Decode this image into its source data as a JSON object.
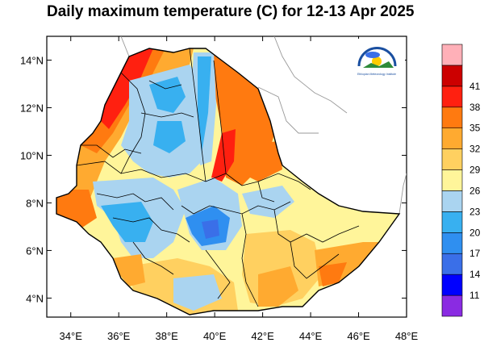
{
  "title": "Daily maximum temperature (C) for 12-13 Apr 2025",
  "x_axis": {
    "range": [
      33,
      48
    ],
    "ticks": [
      {
        "value": 34,
        "label": "34°E"
      },
      {
        "value": 36,
        "label": "36°E"
      },
      {
        "value": 38,
        "label": "38°E"
      },
      {
        "value": 40,
        "label": "40°E"
      },
      {
        "value": 42,
        "label": "42°E"
      },
      {
        "value": 44,
        "label": "44°E"
      },
      {
        "value": 46,
        "label": "46°E"
      },
      {
        "value": 48,
        "label": "48°E"
      }
    ]
  },
  "y_axis": {
    "range": [
      3.2,
      15
    ],
    "ticks": [
      {
        "value": 4,
        "label": "4°N"
      },
      {
        "value": 6,
        "label": "6°N"
      },
      {
        "value": 8,
        "label": "8°N"
      },
      {
        "value": 10,
        "label": "10°N"
      },
      {
        "value": 12,
        "label": "12°N"
      },
      {
        "value": 14,
        "label": "14°N"
      }
    ]
  },
  "colorbar": {
    "colors": [
      "#8a2be2",
      "#0000ff",
      "#3a6fe8",
      "#2f8ff0",
      "#38b0f0",
      "#aad4f0",
      "#fff59a",
      "#ffd060",
      "#ffaa30",
      "#ff7a10",
      "#ff2010",
      "#cc0000",
      "#ffb0b8"
    ],
    "labels": [
      "11",
      "14",
      "17",
      "20",
      "23",
      "26",
      "29",
      "32",
      "35",
      "38",
      "41"
    ]
  },
  "logo": {
    "name": "ethiopian-meteorology-institute-logo",
    "arc_text": "የኢትዮጵያ ሜቴዎሮሎጂ ኢንስቲትዩት",
    "caption": "Ethiopian Meteorology Institute"
  }
}
